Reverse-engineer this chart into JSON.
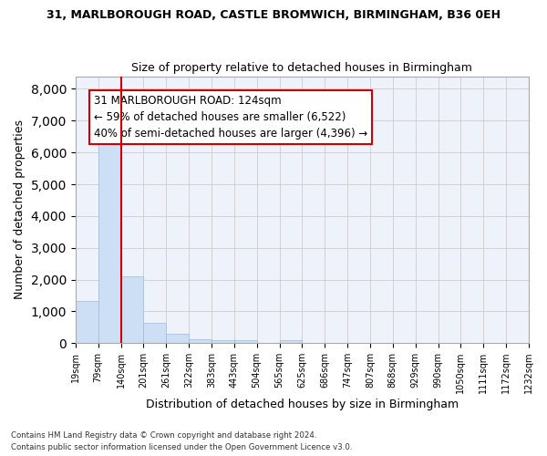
{
  "title": "31, MARLBOROUGH ROAD, CASTLE BROMWICH, BIRMINGHAM, B36 0EH",
  "subtitle": "Size of property relative to detached houses in Birmingham",
  "xlabel": "Distribution of detached houses by size in Birmingham",
  "ylabel": "Number of detached properties",
  "bar_color": "#ccdff5",
  "bar_edge_color": "#9abcdc",
  "grid_color": "#cccccc",
  "background_color": "#eef2fa",
  "property_line_x": 2,
  "property_line_color": "#cc0000",
  "annotation_text": "31 MARLBOROUGH ROAD: 124sqm\n← 59% of detached houses are smaller (6,522)\n40% of semi-detached houses are larger (4,396) →",
  "annotation_box_color": "#cc0000",
  "bin_labels": [
    "19sqm",
    "79sqm",
    "140sqm",
    "201sqm",
    "261sqm",
    "322sqm",
    "383sqm",
    "443sqm",
    "504sqm",
    "565sqm",
    "625sqm",
    "686sqm",
    "747sqm",
    "807sqm",
    "868sqm",
    "929sqm",
    "990sqm",
    "1050sqm",
    "1111sqm",
    "1172sqm",
    "1232sqm"
  ],
  "bar_heights": [
    1320,
    6600,
    2100,
    650,
    300,
    120,
    80,
    80,
    0,
    80,
    0,
    0,
    0,
    0,
    0,
    0,
    0,
    0,
    0,
    0
  ],
  "num_bars": 20,
  "ylim": [
    0,
    8400
  ],
  "yticks": [
    0,
    1000,
    2000,
    3000,
    4000,
    5000,
    6000,
    7000,
    8000
  ],
  "footnote1": "Contains HM Land Registry data © Crown copyright and database right 2024.",
  "footnote2": "Contains public sector information licensed under the Open Government Licence v3.0."
}
